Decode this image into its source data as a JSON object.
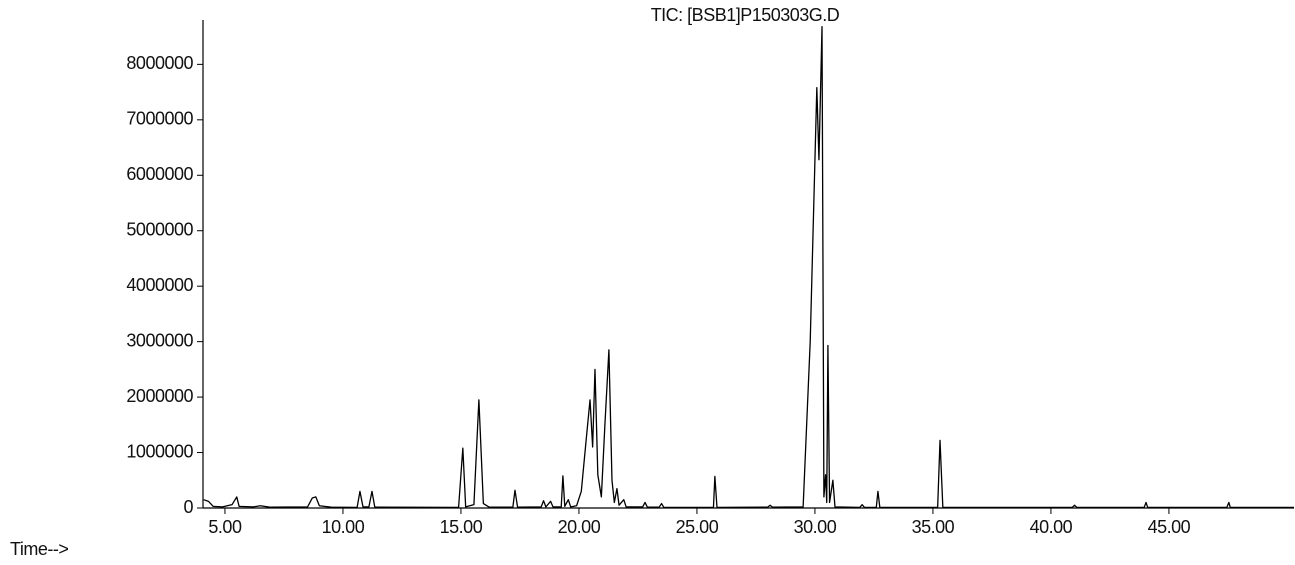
{
  "chart_data": {
    "type": "line",
    "title": "TIC: [BSB1]P150303G.D",
    "x_label": "Time-->",
    "xlim": [
      4.07,
      50.3
    ],
    "ylim": [
      0,
      8800000
    ],
    "xticks": [
      {
        "value": 5,
        "label": "5.00"
      },
      {
        "value": 10,
        "label": "10.00"
      },
      {
        "value": 15,
        "label": "15.00"
      },
      {
        "value": 20,
        "label": "20.00"
      },
      {
        "value": 25,
        "label": "25.00"
      },
      {
        "value": 30,
        "label": "30.00"
      },
      {
        "value": 35,
        "label": "35.00"
      },
      {
        "value": 40,
        "label": "40.00"
      },
      {
        "value": 45,
        "label": "45.00"
      }
    ],
    "yticks": [
      0,
      1000000,
      2000000,
      3000000,
      4000000,
      5000000,
      6000000,
      7000000,
      8000000
    ],
    "color": "#000000",
    "x": [
      4.1,
      4.3,
      4.5,
      4.9,
      5.3,
      5.5,
      5.6,
      6.2,
      6.5,
      6.9,
      8.5,
      8.7,
      8.85,
      9.0,
      9.5,
      10.6,
      10.72,
      10.85,
      11.1,
      11.23,
      11.35,
      14.9,
      15.08,
      15.2,
      15.55,
      15.76,
      15.95,
      16.2,
      17.2,
      17.29,
      17.4,
      18.4,
      18.5,
      18.6,
      18.8,
      18.9,
      19.25,
      19.32,
      19.4,
      19.55,
      19.65,
      19.9,
      20.1,
      20.3,
      20.47,
      20.58,
      20.68,
      20.8,
      20.95,
      21.1,
      21.27,
      21.4,
      21.5,
      21.61,
      21.7,
      21.9,
      22.0,
      22.7,
      22.8,
      22.9,
      23.4,
      23.5,
      23.6,
      25.7,
      25.76,
      25.85,
      28.0,
      28.1,
      28.2,
      29.5,
      29.8,
      30.08,
      30.17,
      30.3,
      30.38,
      30.45,
      30.5,
      30.55,
      30.62,
      30.76,
      30.85,
      31.9,
      32.0,
      32.1,
      32.6,
      32.67,
      32.75,
      35.2,
      35.3,
      35.42,
      40.9,
      41.0,
      41.1,
      43.95,
      44.03,
      44.1,
      47.45,
      47.54,
      47.6,
      50.3
    ],
    "values": [
      150000,
      120000,
      30000,
      20000,
      60000,
      200000,
      30000,
      20000,
      40000,
      15000,
      20000,
      180000,
      200000,
      40000,
      15000,
      10000,
      300000,
      20000,
      20000,
      300000,
      15000,
      10000,
      1080000,
      20000,
      60000,
      1950000,
      80000,
      15000,
      15000,
      320000,
      15000,
      20000,
      130000,
      20000,
      120000,
      20000,
      20000,
      580000,
      30000,
      150000,
      20000,
      40000,
      300000,
      1200000,
      1950000,
      1100000,
      2500000,
      600000,
      200000,
      1500000,
      2850000,
      500000,
      100000,
      350000,
      50000,
      150000,
      20000,
      20000,
      100000,
      15000,
      15000,
      80000,
      10000,
      10000,
      570000,
      10000,
      15000,
      50000,
      15000,
      20000,
      3000000,
      7580000,
      6280000,
      8680000,
      200000,
      600000,
      100000,
      2930000,
      100000,
      500000,
      20000,
      10000,
      60000,
      10000,
      10000,
      300000,
      10000,
      10000,
      1220000,
      10000,
      10000,
      50000,
      10000,
      10000,
      100000,
      10000,
      10000,
      100000,
      10000,
      10000
    ]
  }
}
